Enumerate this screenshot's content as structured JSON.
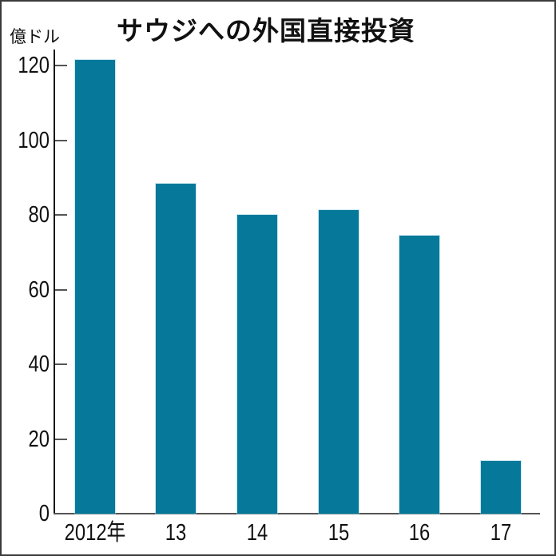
{
  "chart_data": {
    "type": "bar",
    "title": "サウジへの外国直接投資",
    "ylabel": "億ドル",
    "xlabel": "",
    "categories": [
      "2012年",
      "13",
      "14",
      "15",
      "16",
      "17"
    ],
    "values": [
      121.5,
      88.4,
      79.9,
      81.3,
      74.4,
      14.2
    ],
    "ylim": [
      0,
      120
    ],
    "yticks": [
      0,
      20,
      40,
      60,
      80,
      100,
      120
    ],
    "ytick_labels": [
      "0",
      "20",
      "40",
      "60",
      "80",
      "100",
      "120"
    ],
    "grid": false,
    "legend": null,
    "bar_color": "#06799a"
  },
  "labels": {
    "title": "サウジへの外国直接投資",
    "unit": "億ドル",
    "y": [
      "0",
      "20",
      "40",
      "60",
      "80",
      "100",
      "120"
    ],
    "x": [
      "2012年",
      "13",
      "14",
      "15",
      "16",
      "17"
    ]
  }
}
